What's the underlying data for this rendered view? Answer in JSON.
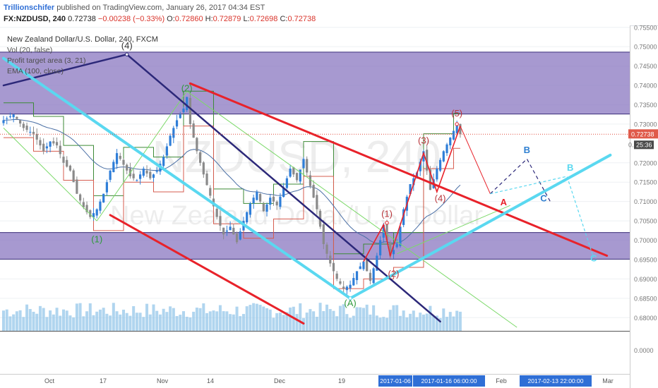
{
  "header": {
    "publisher": "Trillionschifer",
    "published_text": "published on TradingView.com, January 26, 2017 04:34 EST",
    "symbol": "FX:NZDUSD, 240",
    "last": "0.72738",
    "change": "−0.00238 (−0.33%)",
    "o_label": "O:",
    "o_value": "0.72860",
    "h_label": "H:",
    "h_value": "0.72879",
    "l_label": "L:",
    "l_value": "0.72698",
    "c_label": "C:",
    "c_value": "0.72738"
  },
  "legend": {
    "title": "New Zealand Dollar/U.S. Dollar, 240, FXCM",
    "vol": "Vol (20, false)",
    "profit": "Profit target area (3, 21)",
    "ema": "EMA (100, close)"
  },
  "watermark": {
    "symbol": "NZDUSD, 240",
    "name": "New Zealand Dollar/U.S. Dollar"
  },
  "colors": {
    "zone": "#8e7cc3",
    "red": "#e8222a",
    "cyan": "#5ad8f0",
    "navy": "#2c2879",
    "green": "#7cd96a",
    "candle_up": "#2f7ed8",
    "candle_down": "#8a8a8a",
    "volume": "#8fc3e8",
    "ema": "#4a6fa5",
    "wave_red": "#b8343a",
    "wave_green": "#2e9a3a",
    "wave_blue": "#2e7fd1",
    "wave_navy": "#333333"
  },
  "chart_data": {
    "type": "candlestick",
    "symbol": "FX:NZDUSD",
    "timeframe": "240",
    "x_ticks": [
      "Oct",
      "17",
      "Nov",
      "14",
      "Dec",
      "19",
      "2017-01-06",
      "2017-01-16 06:00:00",
      "Feb",
      "2017-02-13 22:00:00",
      "Mar"
    ],
    "y_ticks": [
      0.755,
      0.75,
      0.745,
      0.74,
      0.735,
      0.73,
      0.72,
      0.715,
      0.71,
      0.705,
      0.7,
      0.695,
      0.69,
      0.685,
      0.68
    ],
    "y_tick_labels": [
      "0.75500",
      "0.75000",
      "0.74500",
      "0.74000",
      "0.73500",
      "0.73000",
      "0.72000",
      "0.71500",
      "0.71000",
      "0.70500",
      "0.70000",
      "0.69500",
      "0.69000",
      "0.68500",
      "0.68000"
    ],
    "ylim": [
      0.6775,
      0.7555
    ],
    "volume_axis_label": "0.0000",
    "price_badge": "0.72738",
    "countdown_badge": "25:36",
    "countdown_prefix": "0.",
    "zones": [
      {
        "from": 0.7326,
        "to": 0.7486
      },
      {
        "from": 0.6951,
        "to": 0.702
      }
    ],
    "close_path": [
      {
        "x": 0,
        "y": 0.731
      },
      {
        "x": 3,
        "y": 0.7325
      },
      {
        "x": 6,
        "y": 0.729
      },
      {
        "x": 9,
        "y": 0.7275
      },
      {
        "x": 12,
        "y": 0.723
      },
      {
        "x": 14,
        "y": 0.7255
      },
      {
        "x": 16,
        "y": 0.7245
      },
      {
        "x": 18,
        "y": 0.72
      },
      {
        "x": 20,
        "y": 0.718
      },
      {
        "x": 22,
        "y": 0.712
      },
      {
        "x": 24,
        "y": 0.7085
      },
      {
        "x": 26,
        "y": 0.706
      },
      {
        "x": 28,
        "y": 0.708
      },
      {
        "x": 30,
        "y": 0.712
      },
      {
        "x": 32,
        "y": 0.718
      },
      {
        "x": 34,
        "y": 0.7225
      },
      {
        "x": 36,
        "y": 0.7195
      },
      {
        "x": 38,
        "y": 0.7165
      },
      {
        "x": 40,
        "y": 0.7155
      },
      {
        "x": 42,
        "y": 0.7185
      },
      {
        "x": 44,
        "y": 0.716
      },
      {
        "x": 46,
        "y": 0.718
      },
      {
        "x": 48,
        "y": 0.7215
      },
      {
        "x": 50,
        "y": 0.727
      },
      {
        "x": 52,
        "y": 0.731
      },
      {
        "x": 54,
        "y": 0.734
      },
      {
        "x": 55,
        "y": 0.737
      },
      {
        "x": 56,
        "y": 0.73
      },
      {
        "x": 58,
        "y": 0.723
      },
      {
        "x": 60,
        "y": 0.717
      },
      {
        "x": 62,
        "y": 0.7115
      },
      {
        "x": 64,
        "y": 0.706
      },
      {
        "x": 66,
        "y": 0.7015
      },
      {
        "x": 68,
        "y": 0.7035
      },
      {
        "x": 70,
        "y": 0.6995
      },
      {
        "x": 72,
        "y": 0.705
      },
      {
        "x": 74,
        "y": 0.7095
      },
      {
        "x": 76,
        "y": 0.7125
      },
      {
        "x": 78,
        "y": 0.7075
      },
      {
        "x": 80,
        "y": 0.711
      },
      {
        "x": 82,
        "y": 0.709
      },
      {
        "x": 84,
        "y": 0.7135
      },
      {
        "x": 86,
        "y": 0.7185
      },
      {
        "x": 88,
        "y": 0.7155
      },
      {
        "x": 90,
        "y": 0.721
      },
      {
        "x": 92,
        "y": 0.714
      },
      {
        "x": 94,
        "y": 0.708
      },
      {
        "x": 96,
        "y": 0.699
      },
      {
        "x": 98,
        "y": 0.694
      },
      {
        "x": 100,
        "y": 0.69
      },
      {
        "x": 102,
        "y": 0.6875
      },
      {
        "x": 104,
        "y": 0.6885
      },
      {
        "x": 106,
        "y": 0.692
      },
      {
        "x": 108,
        "y": 0.6945
      },
      {
        "x": 110,
        "y": 0.6895
      },
      {
        "x": 112,
        "y": 0.696
      },
      {
        "x": 114,
        "y": 0.704
      },
      {
        "x": 115,
        "y": 0.7
      },
      {
        "x": 116,
        "y": 0.696
      },
      {
        "x": 118,
        "y": 0.699
      },
      {
        "x": 120,
        "y": 0.708
      },
      {
        "x": 122,
        "y": 0.7145
      },
      {
        "x": 124,
        "y": 0.7175
      },
      {
        "x": 126,
        "y": 0.723
      },
      {
        "x": 127,
        "y": 0.718
      },
      {
        "x": 128,
        "y": 0.713
      },
      {
        "x": 130,
        "y": 0.7185
      },
      {
        "x": 132,
        "y": 0.723
      },
      {
        "x": 134,
        "y": 0.7265
      },
      {
        "x": 136,
        "y": 0.73
      },
      {
        "x": 137,
        "y": 0.7274
      }
    ],
    "trendlines": [
      {
        "color": "red",
        "x1": 32,
        "y1": 0.7065,
        "x2": 90,
        "y2": 0.6785
      },
      {
        "color": "red",
        "x1": 56,
        "y1": 0.7405,
        "x2": 181,
        "y2": 0.696
      },
      {
        "color": "navy",
        "x1": 0,
        "y1": 0.74,
        "x2": 37,
        "y2": 0.748
      },
      {
        "color": "navy",
        "x1": 37,
        "y1": 0.748,
        "x2": 131,
        "y2": 0.679
      },
      {
        "color": "cyan",
        "x1": 0,
        "y1": 0.747,
        "x2": 104,
        "y2": 0.685
      },
      {
        "color": "cyan",
        "x1": 104,
        "y1": 0.685,
        "x2": 182,
        "y2": 0.722
      }
    ],
    "forecast": [
      {
        "x": 137,
        "y": 0.7295
      },
      {
        "x": 146,
        "y": 0.712
      },
      {
        "x": 157,
        "y": 0.721
      },
      {
        "x": 164,
        "y": 0.71
      },
      {
        "x": 169,
        "y": 0.7165
      },
      {
        "x": 177,
        "y": 0.6955
      }
    ],
    "wave_labels": [
      {
        "text": "(4)",
        "x": 37,
        "y": 0.7495,
        "color": "wave_navy"
      },
      {
        "text": "(2)",
        "x": 55,
        "y": 0.7385,
        "color": "wave_green"
      },
      {
        "text": "(1)",
        "x": 28,
        "y": 0.6995,
        "color": "wave_green"
      },
      {
        "text": "(A)",
        "x": 104,
        "y": 0.683,
        "color": "wave_green"
      },
      {
        "text": "(1)",
        "x": 115,
        "y": 0.706,
        "color": "wave_red"
      },
      {
        "text": "(2)",
        "x": 117,
        "y": 0.6905,
        "color": "wave_red"
      },
      {
        "text": "(3)",
        "x": 126,
        "y": 0.725,
        "color": "wave_red"
      },
      {
        "text": "(4)",
        "x": 131,
        "y": 0.71,
        "color": "wave_red"
      },
      {
        "text": "(5)",
        "x": 136,
        "y": 0.732,
        "color": "wave_red"
      },
      {
        "text": "A",
        "x": 150,
        "y": 0.709,
        "color": "red"
      },
      {
        "text": "B",
        "x": 157,
        "y": 0.7225,
        "color": "wave_blue"
      },
      {
        "text": "C",
        "x": 162,
        "y": 0.71,
        "color": "wave_blue"
      },
      {
        "text": "B",
        "x": 170,
        "y": 0.718,
        "color": "cyan"
      },
      {
        "text": "C",
        "x": 177,
        "y": 0.6945,
        "color": "cyan"
      }
    ]
  }
}
